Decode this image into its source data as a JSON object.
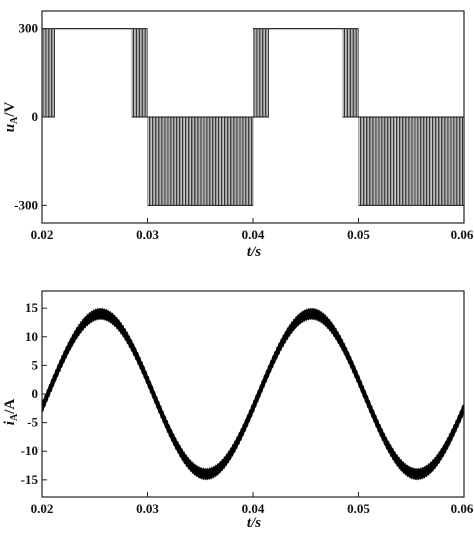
{
  "chart_data": [
    {
      "type": "line",
      "xlabel": "t/s",
      "ylabel": "uA/V",
      "xlim": [
        0.02,
        0.06
      ],
      "ylim": [
        -360,
        360
      ],
      "xticks": [
        0.02,
        0.03,
        0.04,
        0.05,
        0.06
      ],
      "xtick_labels": [
        "0.02",
        "0.03",
        "0.04",
        "0.05",
        "0.06"
      ],
      "yticks": [
        300,
        0,
        -300
      ],
      "ytick_labels": [
        "300",
        "0",
        "-300"
      ],
      "grid": false,
      "levels": [
        300,
        0,
        -300
      ],
      "x_start": 0.02,
      "x_end": 0.06,
      "period": 0.02,
      "segments": [
        {
          "x_start": 0.02,
          "x_end": 0.0212,
          "pattern": "pwm",
          "low": 0,
          "high": 300
        },
        {
          "x_start": 0.0212,
          "x_end": 0.0285,
          "pattern": "level",
          "value": 300
        },
        {
          "x_start": 0.0285,
          "x_end": 0.03,
          "pattern": "pwm",
          "low": 0,
          "high": 300
        },
        {
          "x_start": 0.03,
          "x_end": 0.04,
          "pattern": "pwm",
          "low": -300,
          "high": 0
        },
        {
          "x_start": 0.04,
          "x_end": 0.0415,
          "pattern": "pwm",
          "low": 0,
          "high": 300
        },
        {
          "x_start": 0.0415,
          "x_end": 0.0485,
          "pattern": "level",
          "value": 300
        },
        {
          "x_start": 0.0485,
          "x_end": 0.05,
          "pattern": "pwm",
          "low": 0,
          "high": 300
        },
        {
          "x_start": 0.05,
          "x_end": 0.06,
          "pattern": "pwm",
          "low": -300,
          "high": 0
        }
      ]
    },
    {
      "type": "line",
      "xlabel": "t/s",
      "ylabel": "iA/A",
      "xlim": [
        0.02,
        0.06
      ],
      "ylim": [
        -18,
        18
      ],
      "xticks": [
        0.02,
        0.03,
        0.04,
        0.05,
        0.06
      ],
      "xtick_labels": [
        "0.02",
        "0.03",
        "0.04",
        "0.05",
        "0.06"
      ],
      "yticks": [
        15,
        10,
        5,
        0,
        -5,
        -10,
        -15
      ],
      "ytick_labels": [
        "15",
        "10",
        "5",
        "0",
        "-5",
        "-10",
        "-15"
      ],
      "grid": false,
      "amplitude": 14,
      "frequency_hz": 50,
      "phase_deg": -10,
      "ripple": 1.0,
      "x_start": 0.02,
      "x_end": 0.06,
      "key_points": [
        {
          "x": 0.025,
          "y": 14
        },
        {
          "x": 0.035,
          "y": -14
        },
        {
          "x": 0.045,
          "y": 14
        },
        {
          "x": 0.055,
          "y": -14
        }
      ]
    }
  ]
}
